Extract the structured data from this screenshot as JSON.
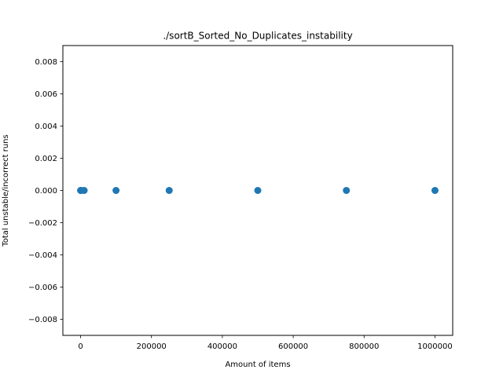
{
  "chart_data": {
    "type": "scatter",
    "title": "./sortB_Sorted_No_Duplicates_instability",
    "xlabel": "Amount of items",
    "ylabel": "Total unstable/incorrect runs",
    "xlim": [
      -50000,
      1050000
    ],
    "ylim": [
      -0.009,
      0.009
    ],
    "xticks": [
      0,
      200000,
      400000,
      600000,
      800000,
      1000000
    ],
    "xtick_labels": [
      "0",
      "200000",
      "400000",
      "600000",
      "800000",
      "1000000"
    ],
    "yticks": [
      -0.008,
      -0.006,
      -0.004,
      -0.002,
      0.0,
      0.002,
      0.004,
      0.006,
      0.008
    ],
    "ytick_labels": [
      "−0.008",
      "−0.006",
      "−0.004",
      "−0.002",
      "0.000",
      "0.002",
      "0.004",
      "0.006",
      "0.008"
    ],
    "grid": false,
    "marker_color": "#1f77b4",
    "points": [
      {
        "x": 1,
        "y": 0
      },
      {
        "x": 1000,
        "y": 0
      },
      {
        "x": 10000,
        "y": 0
      },
      {
        "x": 100000,
        "y": 0
      },
      {
        "x": 250000,
        "y": 0
      },
      {
        "x": 500000,
        "y": 0
      },
      {
        "x": 750000,
        "y": 0
      },
      {
        "x": 1000000,
        "y": 0
      }
    ]
  }
}
